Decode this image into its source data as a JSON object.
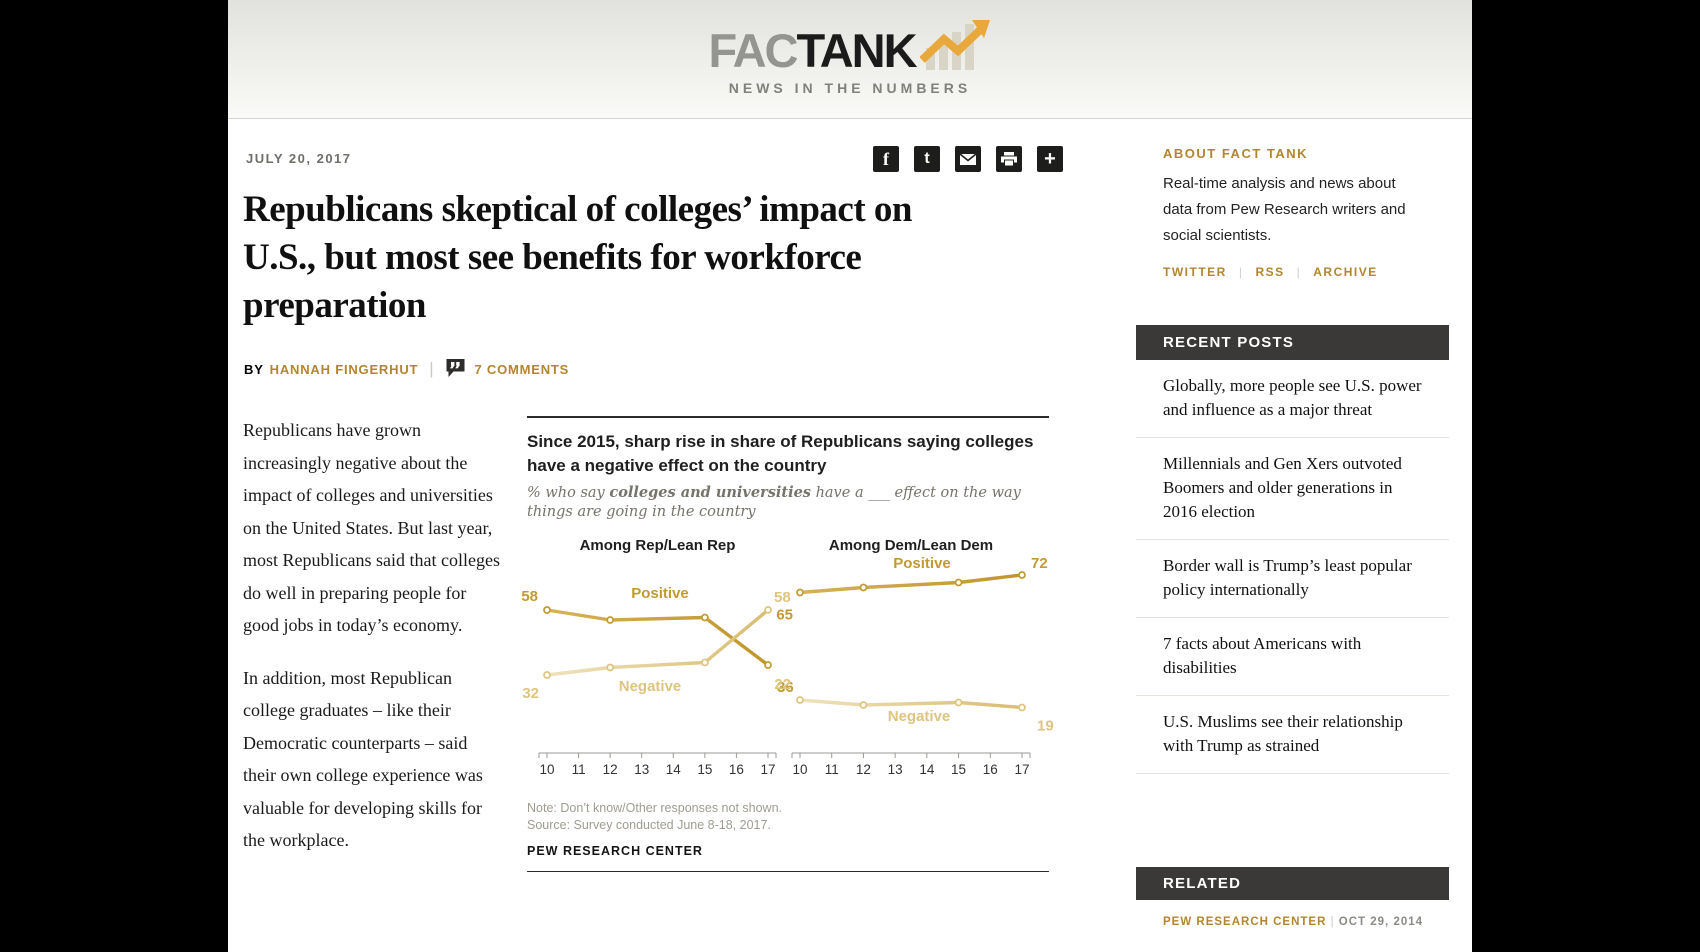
{
  "ui": {
    "pipe": "|"
  },
  "colors": {
    "gold_text": "#b2862e",
    "pos_line": "#bf962b",
    "pos_line_light": "#d6b258",
    "pos_label": "#c29a33",
    "neg_line": "#d8bc70",
    "neg_line_light": "#efe3bb",
    "neg_label": "#ddc57f",
    "bar_dark": "#3b3937"
  },
  "header": {
    "logo_fact": "FAC",
    "logo_tank": "TANK",
    "tagline": "NEWS IN THE NUMBERS"
  },
  "article": {
    "date": "JULY 20, 2017",
    "share_icons": [
      "facebook",
      "twitter",
      "email",
      "print",
      "share-more"
    ],
    "title": "Republicans skeptical of colleges’ impact on U.S., but most see benefits for workforce preparation",
    "byline_prefix": "BY",
    "author": "HANNAH FINGERHUT",
    "comments": "7 COMMENTS",
    "paragraphs": [
      "Republicans have grown increasingly negative about the impact of colleges and universities on the United States. But last year, most Republicans said that colleges do well in preparing people for good jobs in today’s economy.",
      "In addition, most Republican college graduates – like their Democratic counterparts – said their own college experience was valuable for developing skills for the workplace."
    ]
  },
  "chart_data": {
    "type": "line",
    "title": "Since 2015, sharp rise in share of Republicans saying colleges have a negative effect on the country",
    "subtitle_pre": "% who say ",
    "subtitle_bold": "colleges and universities",
    "subtitle_post": " have a ___ effect on the way things are going in the country",
    "x_ticks": [
      "10",
      "11",
      "12",
      "13",
      "14",
      "15",
      "16",
      "17"
    ],
    "x_range": [
      2010,
      2017
    ],
    "ylim": [
      0,
      100
    ],
    "grid": false,
    "panels": [
      {
        "title": "Among Rep/Lean Rep",
        "series": [
          {
            "name": "Positive",
            "color_key": "pos",
            "x": [
              2010,
              2012,
              2015,
              2017
            ],
            "values": [
              58,
              54,
              55,
              36
            ],
            "start_label": "58",
            "end_label": "36"
          },
          {
            "name": "Negative",
            "color_key": "neg",
            "x": [
              2010,
              2012,
              2015,
              2017
            ],
            "values": [
              32,
              35,
              37,
              58
            ],
            "start_label": "32",
            "end_label": "58"
          }
        ]
      },
      {
        "title": "Among Dem/Lean Dem",
        "series": [
          {
            "name": "Positive",
            "color_key": "pos",
            "x": [
              2010,
              2012,
              2015,
              2017
            ],
            "values": [
              65,
              67,
              69,
              72
            ],
            "start_label": "65",
            "end_label": "72"
          },
          {
            "name": "Negative",
            "color_key": "neg",
            "x": [
              2010,
              2012,
              2015,
              2017
            ],
            "values": [
              22,
              20,
              21,
              19
            ],
            "start_label": "22",
            "end_label": "19"
          }
        ]
      }
    ],
    "note": "Note: Don’t know/Other responses not shown.",
    "source": "Source: Survey conducted June 8-18, 2017.",
    "credit": "PEW RESEARCH CENTER"
  },
  "sidebar": {
    "about": {
      "heading": "ABOUT FACT TANK",
      "body": "Real-time analysis and news about data from Pew Research writers and social scientists.",
      "links": [
        "TWITTER",
        "RSS",
        "ARCHIVE"
      ]
    },
    "recent": {
      "heading": "RECENT POSTS",
      "posts": [
        "Globally, more people see U.S. power and influence as a major threat",
        "Millennials and Gen Xers outvoted Boomers and older generations in 2016 election",
        "Border wall is Trump’s least popular policy internationally",
        "7 facts about Americans with disabilities",
        "U.S. Muslims see their relationship with Trump as strained"
      ]
    },
    "related": {
      "heading": "RELATED",
      "source": "PEW RESEARCH CENTER",
      "date": "OCT 29, 2014"
    }
  }
}
